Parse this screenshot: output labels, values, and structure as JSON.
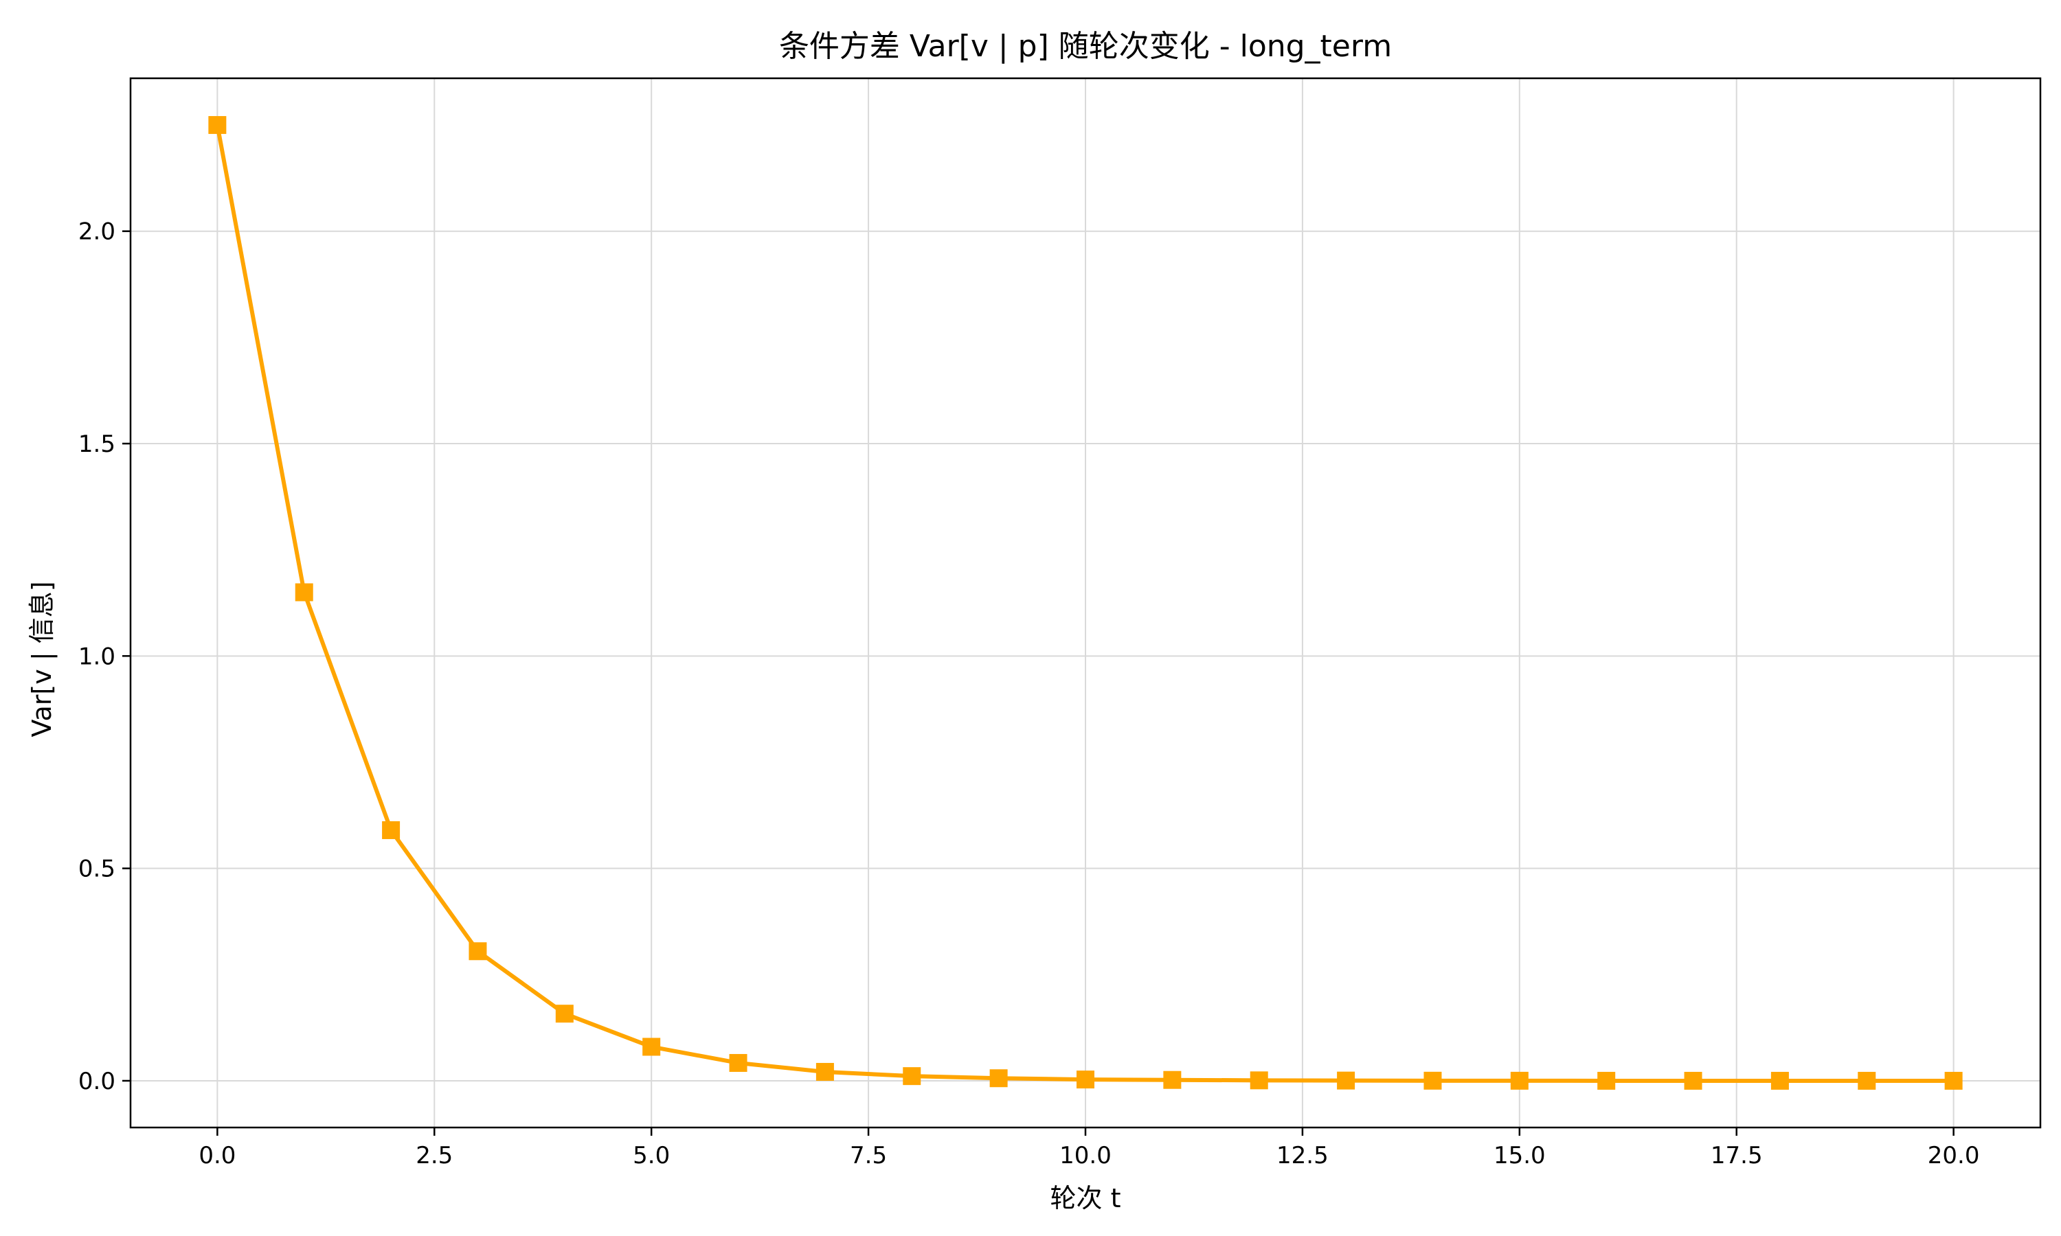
{
  "chart_data": {
    "type": "line",
    "title": "条件方差 Var[v | p] 随轮次变化 - long_term",
    "xlabel": "轮次 t",
    "ylabel": "Var[v | 信息]",
    "xlim": [
      -1.0,
      21.0
    ],
    "ylim": [
      -0.11,
      2.36
    ],
    "xticks": [
      0.0,
      2.5,
      5.0,
      7.5,
      10.0,
      12.5,
      15.0,
      17.5,
      20.0
    ],
    "xtick_labels": [
      "0.0",
      "2.5",
      "5.0",
      "7.5",
      "10.0",
      "12.5",
      "15.0",
      "17.5",
      "20.0"
    ],
    "yticks": [
      0.0,
      0.5,
      1.0,
      1.5,
      2.0
    ],
    "ytick_labels": [
      "0.0",
      "0.5",
      "1.0",
      "1.5",
      "2.0"
    ],
    "grid": true,
    "color": "#FFA500",
    "marker": "square",
    "x": [
      0,
      1,
      2,
      3,
      4,
      5,
      6,
      7,
      8,
      9,
      10,
      11,
      12,
      13,
      14,
      15,
      16,
      17,
      18,
      19,
      20
    ],
    "y": [
      2.25,
      1.15,
      0.59,
      0.305,
      0.158,
      0.08,
      0.042,
      0.021,
      0.011,
      0.006,
      0.003,
      0.002,
      0.001,
      0.0005,
      0.0002,
      0.0001,
      0.0,
      0.0,
      0.0,
      0.0,
      0.0
    ]
  }
}
